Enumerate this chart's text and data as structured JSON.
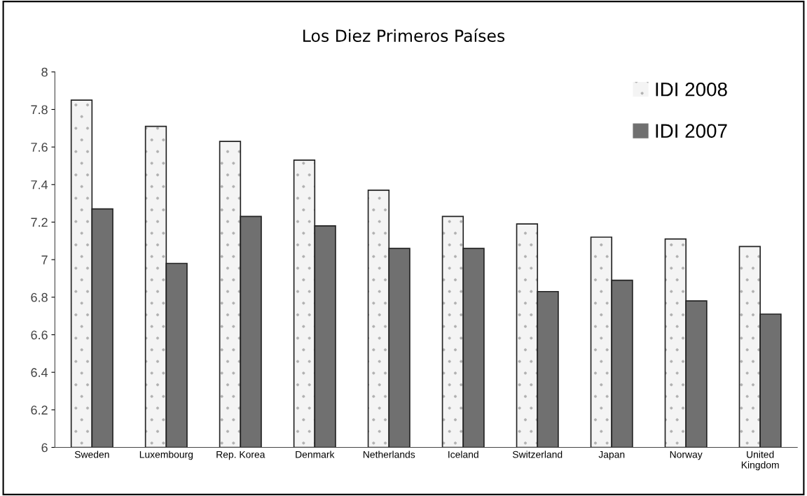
{
  "chart_data": {
    "type": "bar",
    "title": "Los Diez Primeros Países",
    "categories": [
      "Sweden",
      "Luxembourg",
      "Rep. Korea",
      "Denmark",
      "Netherlands",
      "Iceland",
      "Switzerland",
      "Japan",
      "Norway",
      "United\nKingdom"
    ],
    "series": [
      {
        "name": "IDI 2008",
        "color": "#f4f4f4",
        "values": [
          7.85,
          7.71,
          7.63,
          7.53,
          7.37,
          7.23,
          7.19,
          7.12,
          7.11,
          7.07
        ]
      },
      {
        "name": "IDI 2007",
        "color": "#707070",
        "values": [
          7.27,
          6.98,
          7.23,
          7.18,
          7.06,
          7.06,
          6.83,
          6.89,
          6.78,
          6.71
        ]
      }
    ],
    "ylim": [
      6,
      8
    ],
    "yticks": [
      6,
      6.2,
      6.4,
      6.6,
      6.8,
      7,
      7.2,
      7.4,
      7.6,
      7.8,
      8
    ],
    "grid": false,
    "legend": "top right"
  }
}
